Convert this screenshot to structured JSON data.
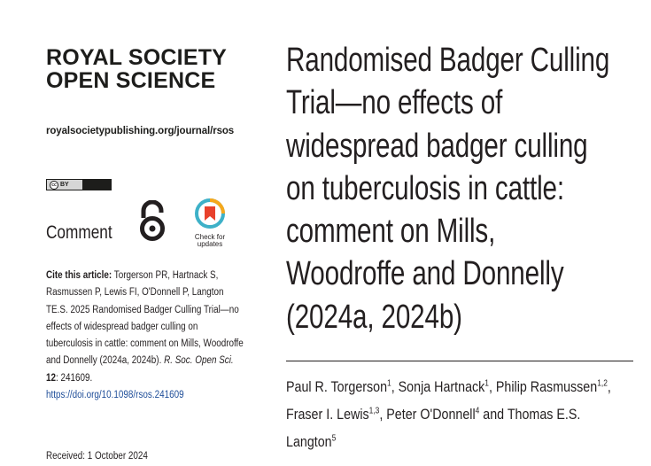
{
  "journal": {
    "name_line1": "ROYAL SOCIETY",
    "name_line2": "OPEN SCIENCE",
    "url": "royalsocietypublishing.org/journal/rsos"
  },
  "license": {
    "cc": "cc",
    "by": "BY"
  },
  "article_type": "Comment",
  "check_updates": {
    "line1": "Check for",
    "line2": "updates"
  },
  "citation": {
    "label": "Cite this article:",
    "text": " Torgerson PR, Hartnack S, Rasmussen P, Lewis FI, O'Donnell P, Langton TE.S. 2025 Randomised Badger Culling Trial—no effects of widespread badger culling on tuberculosis in cattle: comment on Mills, Woodroffe and Donnelly (2024a, 2024b). ",
    "journal_abbrev": "R. Soc. Open Sci.",
    "volume": "12",
    "article_no": ": 241609.",
    "doi": "https://doi.org/10.1098/rsos.241609"
  },
  "received": "Received: 1 October 2024",
  "title": "Randomised Badger Culling Trial—no effects of widespread badger culling on tuberculosis in cattle: comment on Mills, Woodroffe and Donnelly (2024a, 2024b)",
  "authors": [
    {
      "name": "Paul R. Torgerson",
      "aff": "1",
      "sep": ", "
    },
    {
      "name": "Sonja Hartnack",
      "aff": "1",
      "sep": ", "
    },
    {
      "name": "Philip Rasmussen",
      "aff": "1,2",
      "sep": ", "
    },
    {
      "name": "Fraser I. Lewis",
      "aff": "1,3",
      "sep": ", "
    },
    {
      "name": "Peter O'Donnell",
      "aff": "4",
      "sep": " and "
    },
    {
      "name": "Thomas E.S. Langton",
      "aff": "5",
      "sep": ""
    }
  ],
  "colors": {
    "text": "#231f20",
    "link": "#1f4e99",
    "crossmark_orange": "#f6a81c",
    "crossmark_teal": "#3eb1c8",
    "crossmark_red": "#e8412c"
  }
}
